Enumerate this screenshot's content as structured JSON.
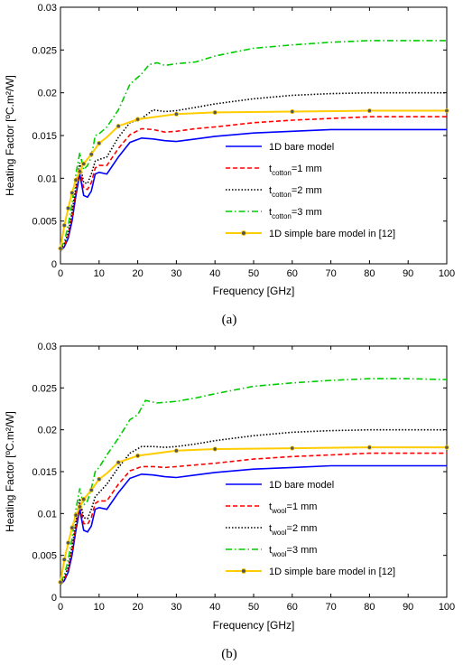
{
  "colors": {
    "blue": "#0000ff",
    "red": "#ff0000",
    "black": "#000000",
    "green": "#00cc00",
    "yellow": "#ffcc00"
  },
  "chart_data": [
    {
      "type": "line",
      "caption": "(a)",
      "xlabel": "Frequency [GHz]",
      "ylabel": "Heating Factor [ºC.m²/W]",
      "xlim": [
        0,
        100
      ],
      "ylim": [
        0,
        0.03
      ],
      "xticks": [
        "0",
        "10",
        "20",
        "30",
        "40",
        "50",
        "60",
        "70",
        "80",
        "90",
        "100"
      ],
      "yticks": [
        "0",
        "0.005",
        "0.01",
        "0.015",
        "0.02",
        "0.025",
        "0.03"
      ],
      "grid": false,
      "legend_position": "lower-right",
      "series": [
        {
          "name": "1D bare model",
          "color": "blue",
          "style": "solid",
          "x": [
            0,
            1,
            2,
            3,
            4,
            5,
            6,
            7,
            8,
            9,
            10,
            12,
            15,
            18,
            21,
            24,
            27,
            30,
            35,
            40,
            50,
            60,
            70,
            80,
            90,
            100
          ],
          "y": [
            0.0015,
            0.002,
            0.003,
            0.005,
            0.008,
            0.0105,
            0.008,
            0.0078,
            0.0085,
            0.0105,
            0.0107,
            0.0105,
            0.0125,
            0.0142,
            0.0147,
            0.0146,
            0.0144,
            0.0143,
            0.0146,
            0.0149,
            0.0153,
            0.0155,
            0.0157,
            0.0157,
            0.0157,
            0.0157
          ]
        },
        {
          "name": "1 mm",
          "name_prefix": "t",
          "name_sub": "cotton",
          "color": "red",
          "style": "dashed",
          "x": [
            0,
            1,
            2,
            3,
            4,
            5,
            6,
            7,
            8,
            9,
            10,
            12,
            15,
            18,
            21,
            24,
            27,
            30,
            35,
            40,
            50,
            60,
            70,
            80,
            90,
            100
          ],
          "y": [
            0.0016,
            0.0022,
            0.0033,
            0.0055,
            0.0085,
            0.0112,
            0.0088,
            0.0087,
            0.0095,
            0.0112,
            0.0115,
            0.0115,
            0.0135,
            0.0151,
            0.0158,
            0.0157,
            0.0154,
            0.0155,
            0.0158,
            0.016,
            0.0165,
            0.0168,
            0.017,
            0.0172,
            0.0172,
            0.0172
          ]
        },
        {
          "name": "2 mm",
          "name_prefix": "t",
          "name_sub": "cotton",
          "color": "black",
          "style": "dotted",
          "x": [
            0,
            1,
            2,
            3,
            4,
            5,
            6,
            7,
            8,
            9,
            10,
            12,
            15,
            18,
            21,
            24,
            27,
            30,
            35,
            40,
            50,
            60,
            70,
            80,
            90,
            100
          ],
          "y": [
            0.0017,
            0.0024,
            0.0036,
            0.006,
            0.009,
            0.0118,
            0.0095,
            0.0094,
            0.0105,
            0.012,
            0.0122,
            0.0125,
            0.0148,
            0.0165,
            0.017,
            0.018,
            0.0178,
            0.0179,
            0.0183,
            0.0187,
            0.0193,
            0.0197,
            0.0199,
            0.02,
            0.02,
            0.02
          ]
        },
        {
          "name": "3 mm",
          "name_prefix": "t",
          "name_sub": "cotton",
          "color": "green",
          "style": "dashdot",
          "x": [
            0,
            1,
            2,
            3,
            4,
            5,
            6,
            7,
            8,
            9,
            10,
            12,
            15,
            18,
            21,
            23,
            25,
            27,
            30,
            35,
            40,
            50,
            60,
            70,
            80,
            90,
            100
          ],
          "y": [
            0.0018,
            0.0026,
            0.0045,
            0.007,
            0.0105,
            0.013,
            0.011,
            0.0115,
            0.0125,
            0.015,
            0.0152,
            0.016,
            0.018,
            0.021,
            0.0222,
            0.0233,
            0.0235,
            0.0232,
            0.0234,
            0.0236,
            0.0243,
            0.0252,
            0.0256,
            0.0259,
            0.0261,
            0.0261,
            0.0261
          ]
        },
        {
          "name": "1D simple bare model in [12]",
          "color": "yellow",
          "style": "solid-star",
          "x": [
            0,
            1,
            2,
            3,
            4,
            5,
            6,
            8,
            10,
            12,
            15,
            20,
            30,
            40,
            60,
            80,
            100
          ],
          "y": [
            0.0018,
            0.0045,
            0.0065,
            0.0083,
            0.0098,
            0.0108,
            0.0117,
            0.0128,
            0.0141,
            0.0148,
            0.0161,
            0.0169,
            0.0175,
            0.0177,
            0.0178,
            0.0179,
            0.0179
          ],
          "marker_x": [
            0,
            1,
            2,
            3,
            4,
            5,
            6,
            8,
            10,
            15,
            20,
            30,
            40,
            60,
            80,
            100
          ]
        }
      ]
    },
    {
      "type": "line",
      "caption": "(b)",
      "xlabel": "Frequency [GHz]",
      "ylabel": "Heating Factor [ºC.m²/W]",
      "xlim": [
        0,
        100
      ],
      "ylim": [
        0,
        0.03
      ],
      "xticks": [
        "0",
        "10",
        "20",
        "30",
        "40",
        "50",
        "60",
        "70",
        "80",
        "90",
        "100"
      ],
      "yticks": [
        "0",
        "0.005",
        "0.01",
        "0.015",
        "0.02",
        "0.025",
        "0.03"
      ],
      "grid": false,
      "legend_position": "lower-right",
      "series": [
        {
          "name": "1D bare model",
          "color": "blue",
          "style": "solid",
          "x": [
            0,
            1,
            2,
            3,
            4,
            5,
            6,
            7,
            8,
            9,
            10,
            12,
            15,
            18,
            21,
            24,
            27,
            30,
            35,
            40,
            50,
            60,
            70,
            80,
            90,
            100
          ],
          "y": [
            0.0015,
            0.002,
            0.003,
            0.005,
            0.008,
            0.0105,
            0.008,
            0.0078,
            0.0085,
            0.0105,
            0.0107,
            0.0105,
            0.0125,
            0.0142,
            0.0147,
            0.0146,
            0.0144,
            0.0143,
            0.0146,
            0.0149,
            0.0153,
            0.0155,
            0.0157,
            0.0157,
            0.0157,
            0.0157
          ]
        },
        {
          "name": "1 mm",
          "name_prefix": "t",
          "name_sub": "wool",
          "color": "red",
          "style": "dashed",
          "x": [
            0,
            1,
            2,
            3,
            4,
            5,
            6,
            7,
            8,
            9,
            10,
            12,
            15,
            18,
            21,
            24,
            27,
            30,
            35,
            40,
            50,
            60,
            70,
            80,
            90,
            100
          ],
          "y": [
            0.0016,
            0.0022,
            0.0033,
            0.0055,
            0.0085,
            0.0112,
            0.0088,
            0.0087,
            0.0095,
            0.0112,
            0.0115,
            0.0115,
            0.0135,
            0.0151,
            0.0156,
            0.0156,
            0.0155,
            0.0156,
            0.0158,
            0.016,
            0.0165,
            0.0168,
            0.017,
            0.0172,
            0.0172,
            0.0172
          ]
        },
        {
          "name": "2 mm",
          "name_prefix": "t",
          "name_sub": "wool",
          "color": "black",
          "style": "dotted",
          "x": [
            0,
            1,
            2,
            3,
            4,
            5,
            6,
            7,
            8,
            9,
            10,
            12,
            15,
            18,
            21,
            24,
            27,
            30,
            35,
            40,
            50,
            60,
            70,
            80,
            90,
            100
          ],
          "y": [
            0.0017,
            0.0024,
            0.0036,
            0.006,
            0.009,
            0.0118,
            0.0095,
            0.0094,
            0.0105,
            0.012,
            0.0125,
            0.0135,
            0.0155,
            0.0172,
            0.018,
            0.018,
            0.0179,
            0.018,
            0.0183,
            0.0187,
            0.0193,
            0.0197,
            0.0199,
            0.02,
            0.02,
            0.02
          ]
        },
        {
          "name": "3 mm",
          "name_prefix": "t",
          "name_sub": "wool",
          "color": "green",
          "style": "dashdot",
          "x": [
            0,
            1,
            2,
            3,
            4,
            5,
            6,
            7,
            8,
            9,
            10,
            12,
            15,
            18,
            20,
            22,
            25,
            30,
            35,
            40,
            50,
            60,
            70,
            80,
            90,
            100
          ],
          "y": [
            0.0018,
            0.0026,
            0.0045,
            0.007,
            0.0105,
            0.013,
            0.011,
            0.0115,
            0.013,
            0.015,
            0.0155,
            0.017,
            0.019,
            0.0212,
            0.0218,
            0.0235,
            0.0232,
            0.0234,
            0.0238,
            0.0243,
            0.0252,
            0.0256,
            0.0259,
            0.0261,
            0.0261,
            0.026
          ]
        },
        {
          "name": "1D simple bare model in [12]",
          "color": "yellow",
          "style": "solid-star",
          "x": [
            0,
            1,
            2,
            3,
            4,
            5,
            6,
            8,
            10,
            12,
            15,
            20,
            30,
            40,
            60,
            80,
            100
          ],
          "y": [
            0.0018,
            0.0045,
            0.0065,
            0.0083,
            0.0098,
            0.0108,
            0.0117,
            0.0128,
            0.0141,
            0.0148,
            0.0161,
            0.0169,
            0.0175,
            0.0177,
            0.0178,
            0.0179,
            0.0179
          ],
          "marker_x": [
            0,
            1,
            2,
            3,
            4,
            5,
            6,
            8,
            10,
            15,
            20,
            30,
            40,
            60,
            80,
            100
          ]
        }
      ]
    }
  ]
}
